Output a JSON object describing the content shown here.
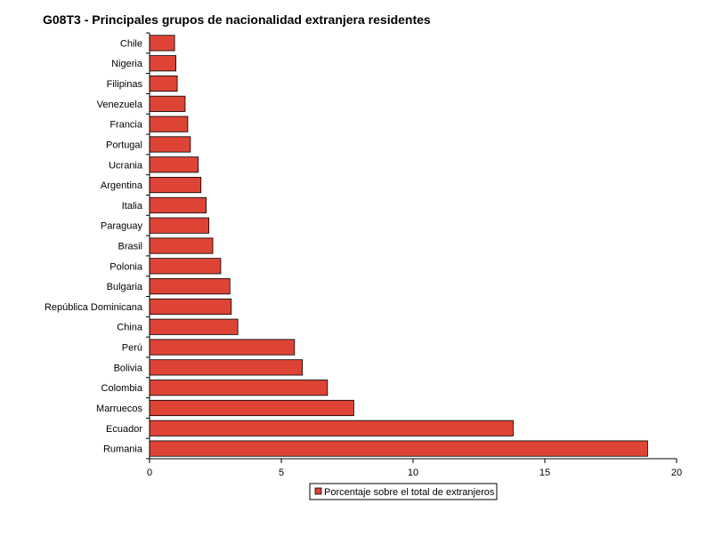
{
  "chart_data": {
    "type": "bar",
    "orientation": "horizontal",
    "title": "G08T3 - Principales grupos de nacionalidad extranjera residentes",
    "categories": [
      "Chile",
      "Nigeria",
      "Filipinas",
      "Venezuela",
      "Francia",
      "Portugal",
      "Ucrania",
      "Argentina",
      "Italia",
      "Paraguay",
      "Brasil",
      "Polonia",
      "Bulgaria",
      "República Dominicana",
      "China",
      "Perú",
      "Bolivia",
      "Colombia",
      "Marruecos",
      "Ecuador",
      "Rumania"
    ],
    "series": [
      {
        "name": "Porcentaje sobre el total de extranjeros",
        "values": [
          0.95,
          1.0,
          1.05,
          1.35,
          1.45,
          1.55,
          1.85,
          1.95,
          2.15,
          2.25,
          2.4,
          2.7,
          3.05,
          3.1,
          3.35,
          5.5,
          5.8,
          6.75,
          7.75,
          13.8,
          18.9
        ]
      }
    ],
    "xlim": [
      0,
      20
    ],
    "xticks": [
      0,
      5,
      10,
      15,
      20
    ],
    "grid": false,
    "legend_position": "bottom",
    "bar_color": "#de4435"
  }
}
